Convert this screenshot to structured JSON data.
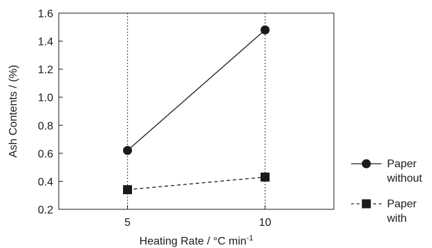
{
  "chart_data": {
    "type": "line",
    "xlabel": "Heating Rate / °C min",
    "xlabel_superscript": "-1",
    "ylabel": "Ash Contents / (%)",
    "x": [
      5,
      10
    ],
    "xticks": [
      "5",
      "10"
    ],
    "xlim": [
      2.5,
      12.5
    ],
    "ylim": [
      0.2,
      1.6
    ],
    "yticks": [
      "0.2",
      "0.4",
      "0.6",
      "0.8",
      "1.0",
      "1.2",
      "1.4",
      "1.6"
    ],
    "grid": "vertical dotted lines at x ticks",
    "legend_position": "right-bottom, outside plot",
    "series": [
      {
        "name": "Paper without",
        "legend_lines": [
          "Paper",
          "without"
        ],
        "marker": "circle",
        "line_style": "solid",
        "color": "#1a1a1a",
        "values": [
          0.62,
          1.48
        ]
      },
      {
        "name": "Paper with",
        "legend_lines": [
          "Paper",
          "with"
        ],
        "marker": "square",
        "line_style": "dashed",
        "color": "#1a1a1a",
        "values": [
          0.34,
          0.43
        ]
      }
    ]
  }
}
